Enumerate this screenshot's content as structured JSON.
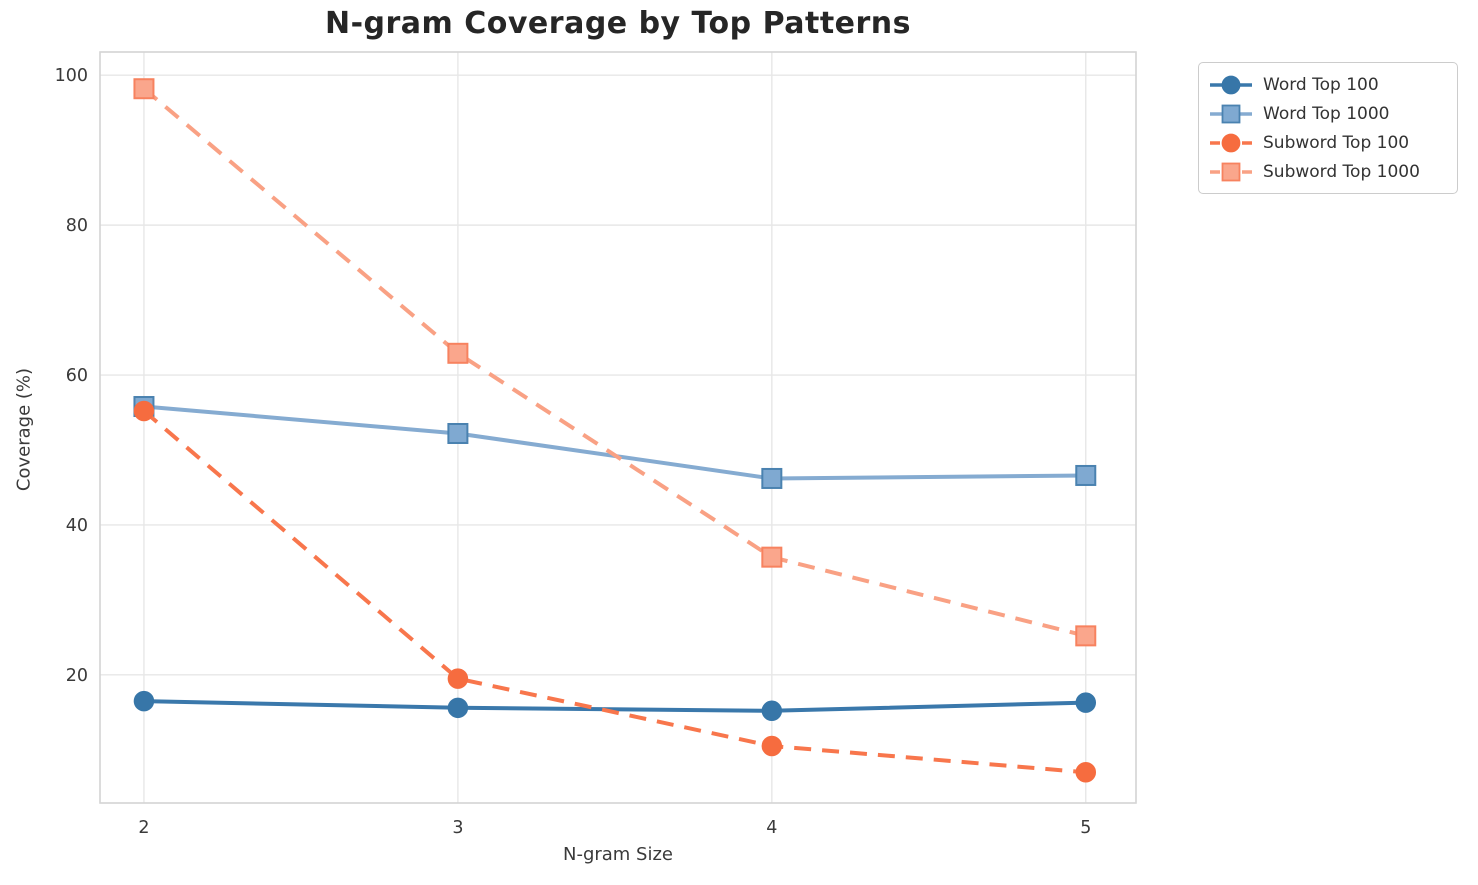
{
  "title": "N-gram Coverage by Top Patterns",
  "chart_data": {
    "type": "line",
    "title": "N-gram Coverage by Top Patterns",
    "xlabel": "N-gram Size",
    "ylabel": "Coverage (%)",
    "x": [
      2,
      3,
      4,
      5
    ],
    "xticks": [
      2,
      3,
      4,
      5
    ],
    "yticks": [
      20,
      40,
      60,
      80,
      100
    ],
    "xlim": [
      1.86,
      5.16
    ],
    "ylim": [
      2.9,
      103.1
    ],
    "grid": true,
    "legend_position": "outside-top-right",
    "series": [
      {
        "name": "Word Top 100",
        "values": [
          16.5,
          15.6,
          15.2,
          16.3
        ],
        "color": "#3a78ab",
        "marker_fill": "#3776a8",
        "marker_edge": "#3776a8",
        "marker": "circle",
        "dash": "solid"
      },
      {
        "name": "Word Top 1000",
        "values": [
          55.8,
          52.2,
          46.2,
          46.6
        ],
        "color": "#85abd1",
        "marker_fill": "#7fa9d1",
        "marker_edge": "#4a82b0",
        "marker": "square",
        "dash": "solid"
      },
      {
        "name": "Subword Top 100",
        "values": [
          55.2,
          19.5,
          10.5,
          7.0
        ],
        "color": "#f8764c",
        "marker_fill": "#f66c3f",
        "marker_edge": "#f66c3f",
        "marker": "circle",
        "dash": "dashed"
      },
      {
        "name": "Subword Top 1000",
        "values": [
          98.2,
          62.9,
          35.7,
          25.2
        ],
        "color": "#f9a184",
        "marker_fill": "#faa68c",
        "marker_edge": "#f7825f",
        "marker": "square",
        "dash": "dashed"
      }
    ]
  },
  "style": {
    "grid_color": "#e7e7e7",
    "spine_color": "#d4d4d4",
    "tick_label_color": "#3a3a3a",
    "title_color": "#262626"
  }
}
